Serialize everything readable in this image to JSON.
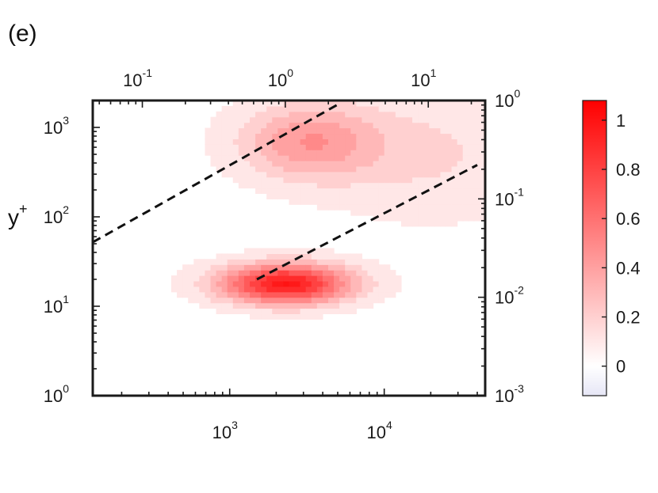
{
  "panel_label": "(e)",
  "chart_data": {
    "type": "contour",
    "ylabel": "y",
    "ylabel_superscript": "+",
    "x_bottom": {
      "scale": "log",
      "range": [
        130,
        45000
      ],
      "ticks": [
        {
          "base": "10",
          "exp": "3",
          "value": 1000
        },
        {
          "base": "10",
          "exp": "4",
          "value": 10000
        }
      ]
    },
    "x_top": {
      "scale": "log",
      "range": [
        0.045,
        25
      ],
      "ticks": [
        {
          "base": "10",
          "exp": "-1",
          "value": 0.1
        },
        {
          "base": "10",
          "exp": "0",
          "value": 1
        },
        {
          "base": "10",
          "exp": "1",
          "value": 10
        }
      ]
    },
    "y_left": {
      "scale": "log",
      "range": [
        1,
        2000
      ],
      "ticks": [
        {
          "base": "10",
          "exp": "0",
          "value": 1
        },
        {
          "base": "10",
          "exp": "1",
          "value": 10
        },
        {
          "base": "10",
          "exp": "2",
          "value": 100
        },
        {
          "base": "10",
          "exp": "3",
          "value": 1000
        }
      ]
    },
    "y_right": {
      "scale": "log",
      "range": [
        0.001,
        1
      ],
      "ticks": [
        {
          "base": "10",
          "exp": "-3",
          "value": 0.001
        },
        {
          "base": "10",
          "exp": "-2",
          "value": 0.01
        },
        {
          "base": "10",
          "exp": "-1",
          "value": 0.1
        },
        {
          "base": "10",
          "exp": "0",
          "value": 1
        }
      ]
    },
    "colorbar": {
      "range": [
        -0.12,
        1.08
      ],
      "ticks": [
        {
          "label": "0",
          "value": 0
        },
        {
          "label": "0.2",
          "value": 0.2
        },
        {
          "label": "0.4",
          "value": 0.4
        },
        {
          "label": "0.6",
          "value": 0.6
        },
        {
          "label": "0.8",
          "value": 0.8
        },
        {
          "label": "1",
          "value": 1
        }
      ],
      "colors": [
        "#e8e8f6",
        "#ffffff",
        "#ff0000"
      ]
    },
    "contour_levels": [
      0.05,
      0.15,
      0.25,
      0.35,
      0.45,
      0.55,
      0.65,
      0.75,
      0.85,
      0.95,
      1.0
    ],
    "peaks": [
      {
        "x": 2300,
        "y": 18,
        "amplitude": 1.0
      },
      {
        "x": 3200,
        "y": 700,
        "amplitude": 0.42
      },
      {
        "x": 20000,
        "y": 500,
        "amplitude": 0.16
      }
    ],
    "dashed_lines": [
      {
        "x": [
          130,
          5000
        ],
        "y": [
          52,
          1800
        ]
      },
      {
        "x": 1500,
        "y": 20,
        "x_end": 40000,
        "y_end": 380
      }
    ]
  }
}
